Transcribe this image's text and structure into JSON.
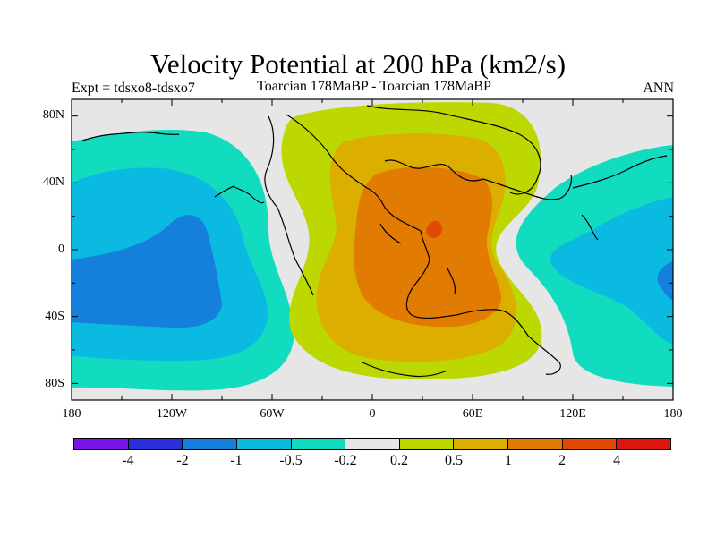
{
  "title": "Velocity Potential at 200 hPa (km2/s)",
  "subtitle_left": "Expt = tdsxo8-tdsxo7",
  "subtitle_center": "Toarcian 178MaBP - Toarcian 178MaBP",
  "subtitle_right": "ANN",
  "lat_labels": [
    "80N",
    "40N",
    "0",
    "40S",
    "80S"
  ],
  "lon_labels": [
    "180",
    "120W",
    "60W",
    "0",
    "60E",
    "120E",
    "180"
  ],
  "colorbar": {
    "labels": [
      "-4",
      "-2",
      "-1",
      "-0.5",
      "-0.2",
      "0.2",
      "0.5",
      "1",
      "2",
      "4"
    ],
    "colors": [
      "#7a12e6",
      "#2b2fd9",
      "#1580dc",
      "#0bbae0",
      "#11dcbf",
      "#e6e6e6",
      "#bcd800",
      "#dcae00",
      "#e27b02",
      "#e24a04",
      "#de1410"
    ]
  },
  "map_colors": {
    "background": "#e6e6e6",
    "neg_02": "#11dcbf",
    "neg_05": "#0bbae0",
    "neg_1": "#1580dc",
    "pos_02": "#bcd800",
    "pos_05": "#dcae00",
    "pos_1": "#e27b02",
    "pos_2": "#e24a04",
    "coast": "#000000"
  }
}
